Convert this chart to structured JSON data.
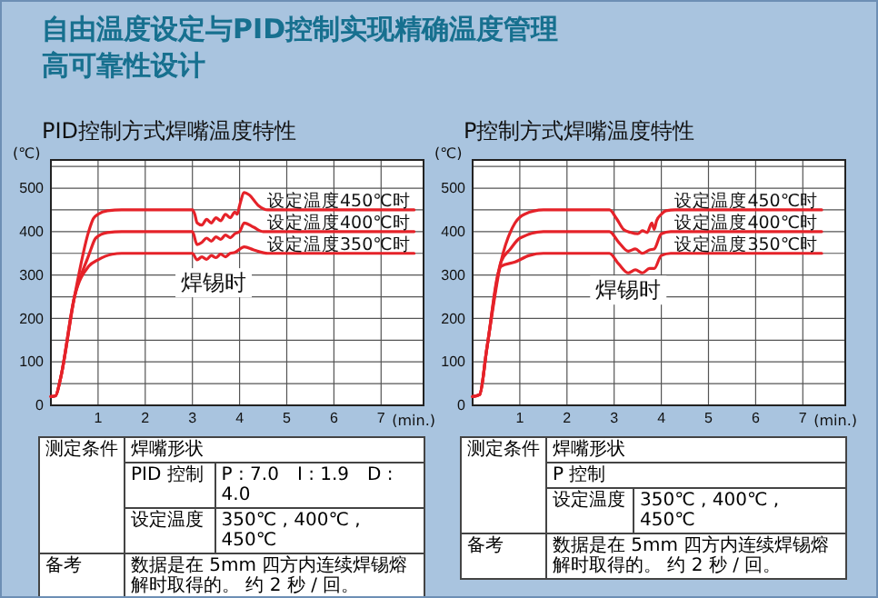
{
  "chart_data": [
    {
      "type": "line",
      "title": "PID控制方式焊嘴温度特性",
      "ylabel": "(℃)",
      "xlabel": "(min.)",
      "xlim": [
        0,
        7.9
      ],
      "ylim": [
        0,
        565
      ],
      "xticks": [
        1,
        2,
        3,
        4,
        5,
        6,
        7
      ],
      "yticks": [
        0,
        {
          "value": 50,
          "label": null
        },
        100,
        {
          "value": 150,
          "label": null
        },
        200,
        {
          "value": 250,
          "label": null
        },
        300,
        {
          "value": 350,
          "label": null
        },
        400,
        {
          "value": 450,
          "label": null
        },
        500,
        {
          "value": 550,
          "label": null
        }
      ],
      "grid": true,
      "series": [
        {
          "name": "设定温度450℃时",
          "color": "#e52229",
          "x": [
            0,
            0.1,
            0.2,
            0.5,
            0.8,
            0.9,
            1.0,
            1.2,
            1.5,
            3.0,
            3.05,
            3.1,
            3.2,
            3.3,
            3.4,
            3.5,
            3.6,
            3.7,
            3.8,
            3.9,
            3.95,
            4.0,
            4.1,
            4.2,
            4.4,
            4.6,
            7.7
          ],
          "values": [
            20,
            22,
            60,
            250,
            400,
            430,
            440,
            448,
            450,
            450,
            440,
            420,
            415,
            428,
            420,
            432,
            425,
            440,
            432,
            445,
            440,
            460,
            490,
            485,
            460,
            450,
            450
          ]
        },
        {
          "name": "设定温度400℃时",
          "color": "#e52229",
          "x": [
            0,
            0.1,
            0.2,
            0.5,
            0.8,
            0.85,
            0.95,
            1.2,
            1.5,
            3.0,
            3.1,
            3.2,
            3.3,
            3.4,
            3.5,
            3.6,
            3.7,
            3.8,
            3.9,
            4.0,
            4.1,
            4.3,
            4.5,
            7.7
          ],
          "values": [
            20,
            22,
            60,
            250,
            345,
            360,
            385,
            398,
            400,
            400,
            370,
            375,
            385,
            378,
            388,
            382,
            392,
            386,
            395,
            400,
            420,
            410,
            400,
            400
          ]
        },
        {
          "name": "设定温度350℃时",
          "color": "#e52229",
          "x": [
            0,
            0.1,
            0.2,
            0.5,
            0.8,
            1.0,
            1.3,
            1.5,
            3.0,
            3.1,
            3.2,
            3.3,
            3.4,
            3.5,
            3.6,
            3.7,
            3.8,
            3.9,
            4.1,
            4.3,
            4.6,
            7.7
          ],
          "values": [
            20,
            22,
            60,
            250,
            320,
            335,
            348,
            350,
            350,
            335,
            342,
            336,
            345,
            340,
            348,
            342,
            350,
            352,
            365,
            358,
            350,
            350
          ]
        }
      ],
      "annotations": [
        "自由温度设定与PID控制实现精确温度管理",
        "高可靠性设计",
        "焊锡时",
        "测定条件",
        "焊嘴形状",
        "PID 控制",
        "P : 7.0　I : 1.9　D : 4.0",
        "设定温度",
        "350℃ , 400℃ , 450℃",
        "备考",
        "数据是在 5mm 四方内连续焊锡熔解时取得的。 约 2 秒 / 回。"
      ]
    },
    {
      "type": "line",
      "title": "P控制方式焊嘴温度特性",
      "ylabel": "(℃)",
      "xlabel": "(min.)",
      "xlim": [
        0,
        7.9
      ],
      "ylim": [
        0,
        565
      ],
      "xticks": [
        1,
        2,
        3,
        4,
        5,
        6,
        7
      ],
      "yticks": [
        0,
        {
          "value": 50,
          "label": null
        },
        100,
        {
          "value": 150,
          "label": null
        },
        200,
        {
          "value": 250,
          "label": null
        },
        300,
        {
          "value": 350,
          "label": null
        },
        400,
        {
          "value": 450,
          "label": null
        },
        500,
        {
          "value": 550,
          "label": null
        }
      ],
      "grid": true,
      "series": [
        {
          "name": "设定温度450℃时",
          "color": "#e52229",
          "x": [
            0,
            0.15,
            0.3,
            0.6,
            0.9,
            1.1,
            1.5,
            2.9,
            3.05,
            3.2,
            3.35,
            3.5,
            3.6,
            3.7,
            3.8,
            3.85,
            3.9,
            4.0,
            4.1,
            4.3,
            7.4
          ],
          "values": [
            20,
            25,
            130,
            330,
            420,
            440,
            450,
            450,
            430,
            405,
            398,
            395,
            402,
            398,
            420,
            405,
            425,
            440,
            448,
            450,
            450
          ]
        },
        {
          "name": "设定温度400℃时",
          "color": "#e52229",
          "x": [
            0,
            0.15,
            0.3,
            0.6,
            0.8,
            1.0,
            1.5,
            2.9,
            3.1,
            3.3,
            3.45,
            3.6,
            3.75,
            3.85,
            4.0,
            4.2,
            7.4
          ],
          "values": [
            20,
            25,
            130,
            330,
            360,
            385,
            400,
            400,
            375,
            355,
            360,
            350,
            358,
            360,
            395,
            400,
            400
          ]
        },
        {
          "name": "设定温度350℃时",
          "color": "#e52229",
          "x": [
            0,
            0.15,
            0.3,
            0.6,
            0.9,
            1.2,
            1.5,
            2.9,
            3.1,
            3.3,
            3.45,
            3.6,
            3.75,
            3.85,
            4.0,
            4.2,
            7.4
          ],
          "values": [
            20,
            25,
            130,
            320,
            330,
            345,
            350,
            350,
            325,
            305,
            312,
            305,
            315,
            315,
            345,
            350,
            350
          ]
        }
      ],
      "annotations": [
        "焊锡时",
        "测定条件",
        "焊嘴形状",
        "P 控制",
        "设定温度",
        "350℃ , 400℃ , 450℃",
        "备考",
        "数据是在 5mm 四方内连续焊锡熔解时取得的。 约 2 秒 / 回。"
      ]
    }
  ]
}
